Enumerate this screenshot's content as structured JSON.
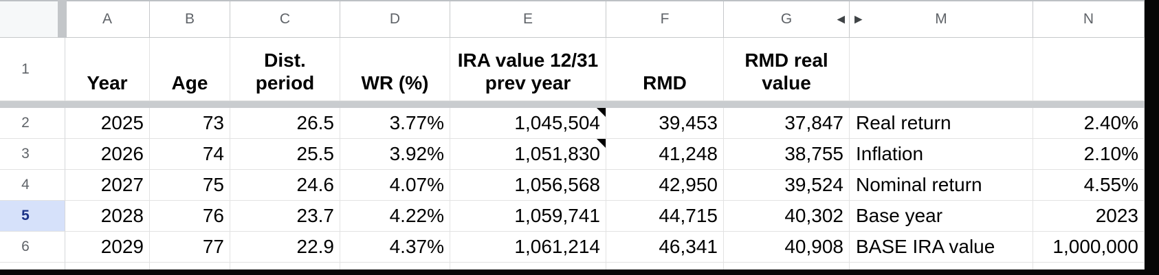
{
  "app": "spreadsheet",
  "colors": {
    "grid_line": "#e2e2e2",
    "header_border": "#c6c8ca",
    "frozen_divider": "#c9cccf",
    "selected_row_bg": "#d6e1fa",
    "selected_row_text": "#1b3287",
    "header_text": "#5f6368",
    "cell_text": "#000000",
    "note_indicator": "#000000"
  },
  "icons": {
    "hidden_cols_left": "◀",
    "hidden_cols_right": "▶"
  },
  "columns": {
    "a": "A",
    "b": "B",
    "c": "C",
    "d": "D",
    "e": "E",
    "f": "F",
    "g": "G",
    "m": "M",
    "n": "N"
  },
  "header_row": {
    "num": "1",
    "cells": [
      "Year",
      "Age",
      "Dist. period",
      "WR (%)",
      "IRA value 12/31 prev year",
      "RMD",
      "RMD real value",
      "",
      ""
    ]
  },
  "rows": [
    {
      "num": "2",
      "cells": [
        "2025",
        "73",
        "26.5",
        "3.77%",
        "1,045,504",
        "39,453",
        "37,847",
        "Real return",
        "2.40%"
      ],
      "note_e": true
    },
    {
      "num": "3",
      "cells": [
        "2026",
        "74",
        "25.5",
        "3.92%",
        "1,051,830",
        "41,248",
        "38,755",
        "Inflation",
        "2.10%"
      ],
      "note_e": true
    },
    {
      "num": "4",
      "cells": [
        "2027",
        "75",
        "24.6",
        "4.07%",
        "1,056,568",
        "42,950",
        "39,524",
        "Nominal return",
        "4.55%"
      ],
      "note_e": false
    },
    {
      "num": "5",
      "cells": [
        "2028",
        "76",
        "23.7",
        "4.22%",
        "1,059,741",
        "44,715",
        "40,302",
        "Base year",
        "2023"
      ],
      "note_e": false,
      "selected": true
    },
    {
      "num": "6",
      "cells": [
        "2029",
        "77",
        "22.9",
        "4.37%",
        "1,061,214",
        "46,341",
        "40,908",
        "BASE IRA value",
        "1,000,000"
      ],
      "note_e": false
    }
  ]
}
